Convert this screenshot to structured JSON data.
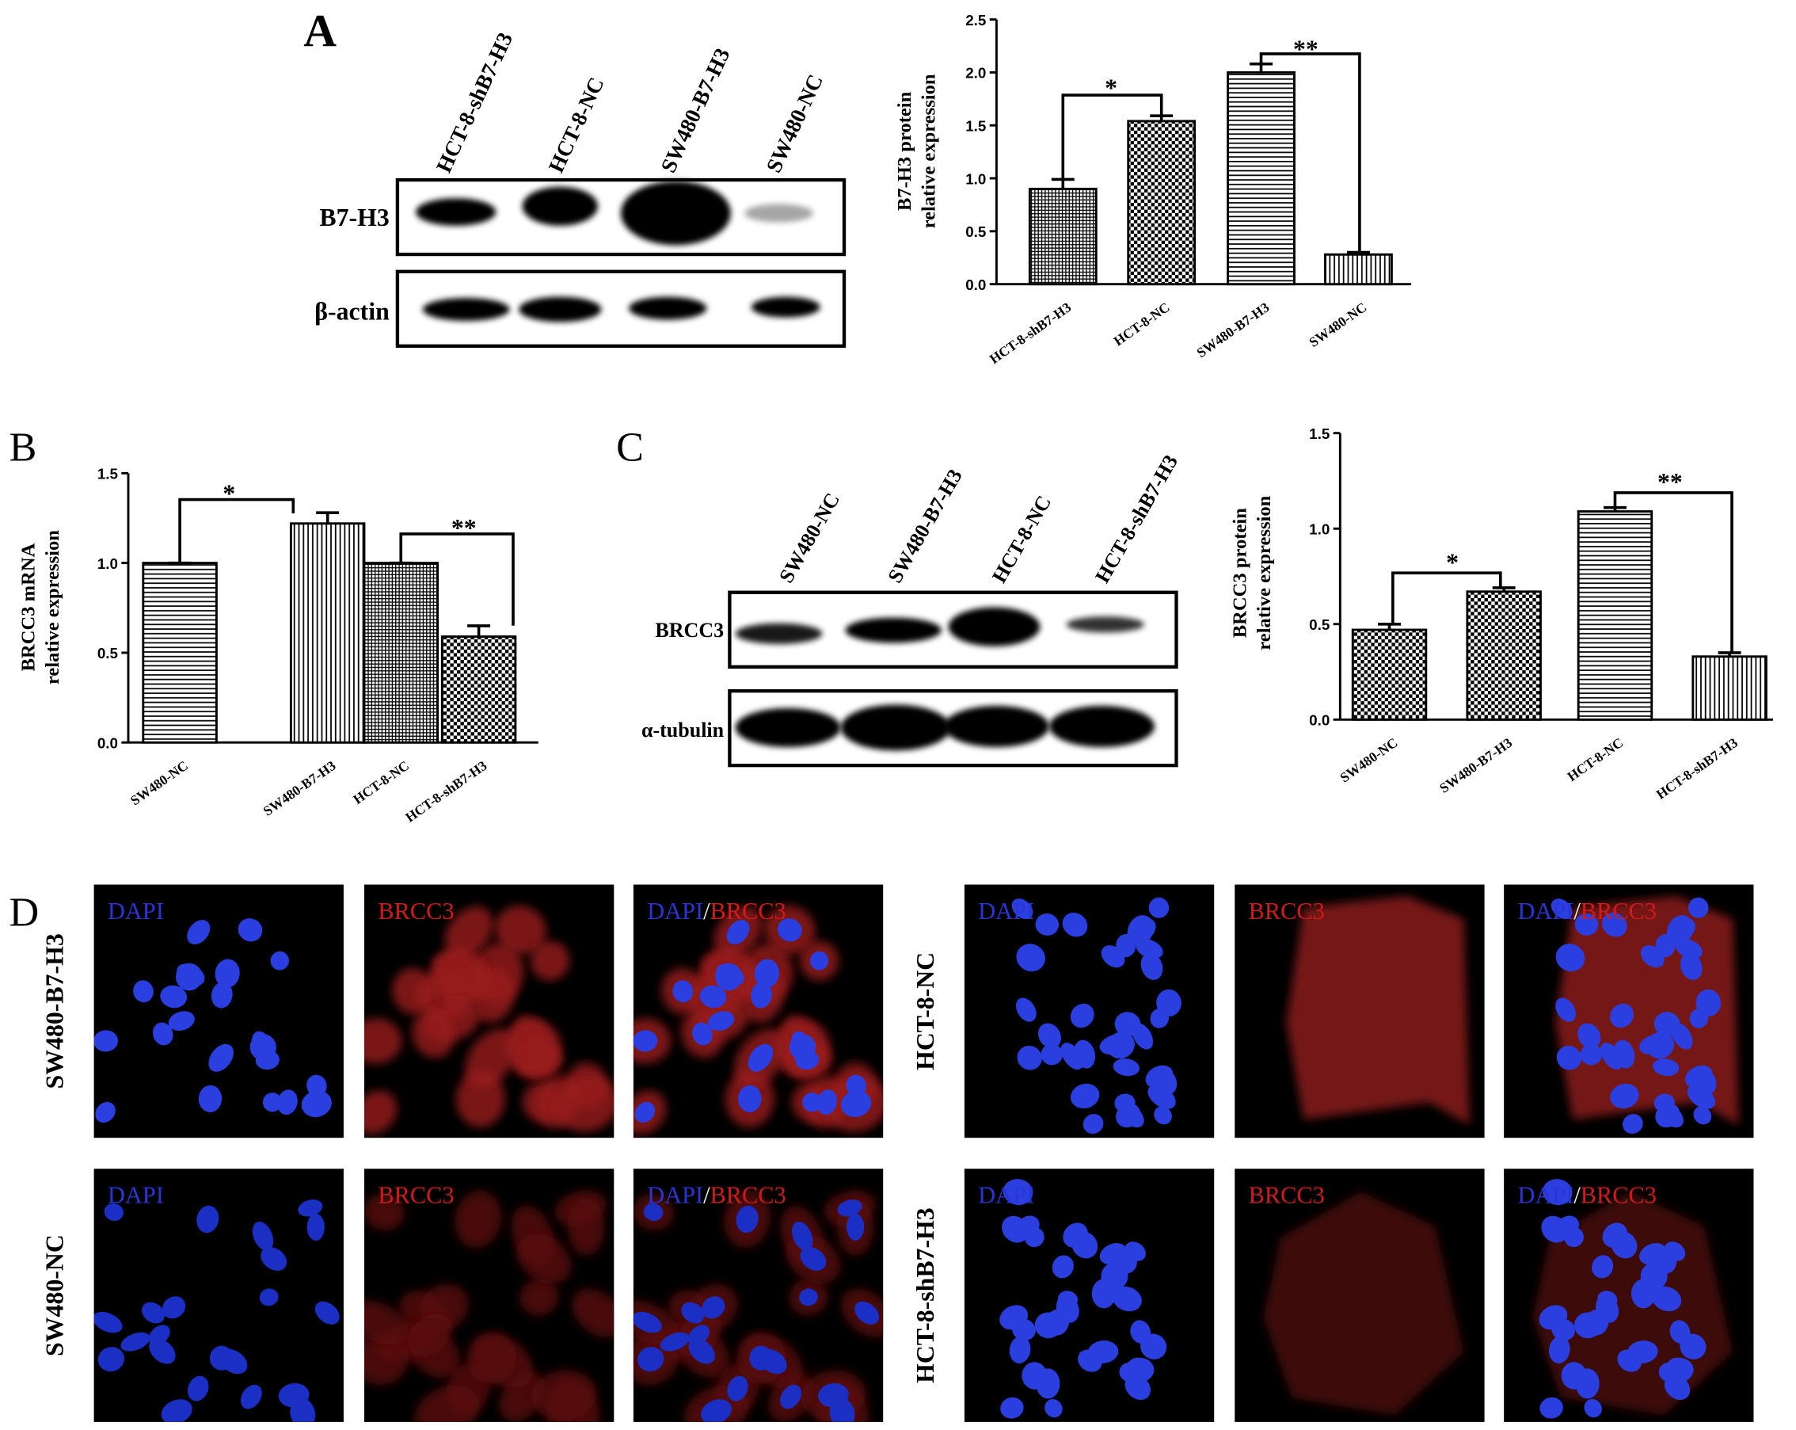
{
  "panel_labels": [
    "A",
    "B",
    "C",
    "D"
  ],
  "blots": [
    {
      "lanes": [
        "HCT-8-shB7-H3",
        "HCT-8-NC",
        "SW480-B7-H3",
        "SW480-NC"
      ],
      "rows": [
        "B7-H3",
        "β-actin"
      ]
    },
    {
      "lanes": [
        "SW480-NC",
        "SW480-B7-H3",
        "HCT-8-NC",
        "HCT-8-shB7-H3"
      ],
      "rows": [
        "BRCC3",
        "α-tubulin"
      ]
    }
  ],
  "chart_data": [
    {
      "type": "bar",
      "ylabel": [
        "B7-H3 protein",
        "relative expression"
      ],
      "categories": [
        "HCT-8-shB7-H3",
        "HCT-8-NC",
        "SW480-B7-H3",
        "SW480-NC"
      ],
      "values": [
        0.9,
        1.54,
        2.0,
        0.28
      ],
      "errors": [
        0.09,
        0.05,
        0.08,
        0.02
      ],
      "patterns": [
        "crosshatch",
        "checker",
        "horizontal",
        "vertical"
      ],
      "ylim": [
        0,
        2.5
      ],
      "yticks": [
        {
          "value": 0,
          "label": "0.0"
        },
        0.5,
        {
          "value": 1,
          "label": "1.0"
        },
        1.5,
        {
          "value": 2,
          "label": "2.0"
        },
        2.5
      ],
      "annotations": [
        "*",
        "**"
      ]
    },
    {
      "type": "bar",
      "ylabel": [
        "BRCC3 mRNA",
        "relative expression"
      ],
      "categories": [
        "SW480-NC",
        "SW480-B7-H3",
        "HCT-8-NC",
        "HCT-8-shB7-H3"
      ],
      "values": [
        1.0,
        1.22,
        1.0,
        0.59
      ],
      "errors": [
        0,
        0.06,
        0,
        0.06
      ],
      "patterns": [
        "horizontal",
        "vertical",
        "crosshatch",
        "checker"
      ],
      "ylim": [
        0,
        1.5
      ],
      "yticks": [
        {
          "value": 0,
          "label": "0.0"
        },
        0.5,
        {
          "value": 1,
          "label": "1.0"
        },
        1.5
      ],
      "annotations": [
        "*",
        "**"
      ]
    },
    {
      "type": "bar",
      "ylabel": [
        "BRCC3 protein",
        "relative expression"
      ],
      "categories": [
        "SW480-NC",
        "SW480-B7-H3",
        "HCT-8-NC",
        "HCT-8-shB7-H3"
      ],
      "values": [
        0.47,
        0.67,
        1.09,
        0.33
      ],
      "errors": [
        0.03,
        0.02,
        0.02,
        0.02
      ],
      "patterns": [
        "checker",
        "checker",
        "horizontal",
        "vertical"
      ],
      "ylim": [
        0,
        1.5
      ],
      "yticks": [
        {
          "value": 0,
          "label": "0.0"
        },
        0.5,
        {
          "value": 1,
          "label": "1.0"
        },
        1.5
      ],
      "annotations": [
        "*",
        "**"
      ]
    }
  ],
  "immunofluorescence": {
    "channels": [
      "DAPI",
      "BRCC3"
    ],
    "separator": "/",
    "rows": [
      "SW480-B7-H3",
      "SW480-NC",
      "HCT-8-NC",
      "HCT-8-shB7-H3"
    ]
  }
}
